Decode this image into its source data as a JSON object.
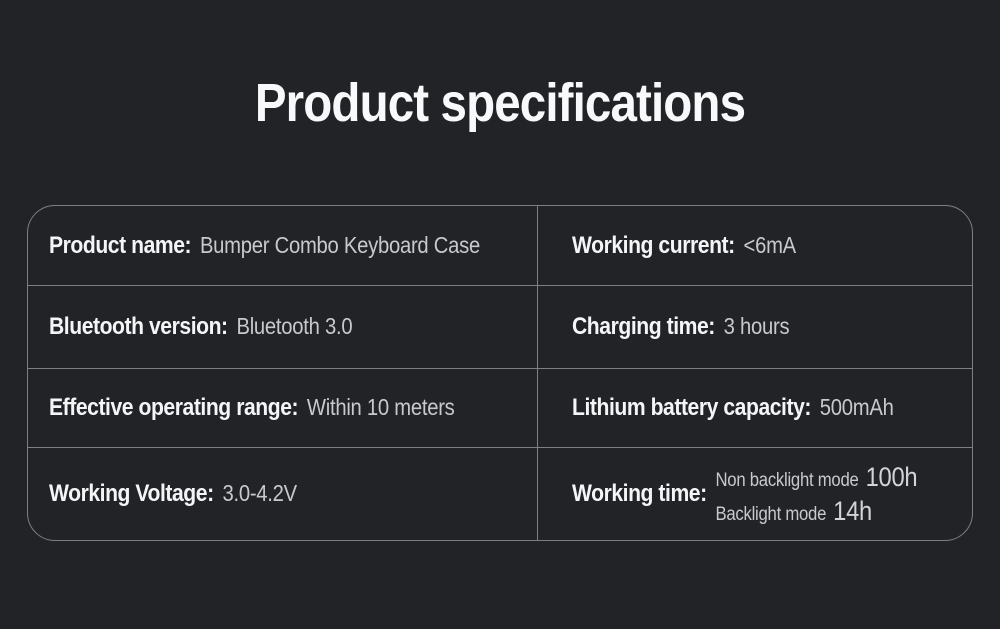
{
  "page": {
    "title": "Product specifications"
  },
  "colors": {
    "background": "#212327",
    "border_line": "#7b8086",
    "label_text": "#f4f5f7",
    "value_text": "#c7cacd"
  },
  "table": {
    "rows": [
      {
        "left": {
          "label": "Product name:",
          "value": "Bumper Combo Keyboard Case"
        },
        "right": {
          "label": "Working current:",
          "value": "<6mA"
        }
      },
      {
        "left": {
          "label": "Bluetooth version:",
          "value": "Bluetooth 3.0"
        },
        "right": {
          "label": "Charging time:",
          "value": "3 hours"
        }
      },
      {
        "left": {
          "label": "Effective operating range:",
          "value": "Within 10 meters"
        },
        "right": {
          "label": "Lithium battery capacity:",
          "value": "500mAh"
        }
      },
      {
        "left": {
          "label": "Working Voltage:",
          "value": "3.0-4.2V"
        },
        "right": {
          "label": "Working time:",
          "value_lines": [
            {
              "text": "Non backlight mode",
              "number": "100h"
            },
            {
              "text": "Backlight mode",
              "number": "14h"
            }
          ]
        }
      }
    ]
  }
}
